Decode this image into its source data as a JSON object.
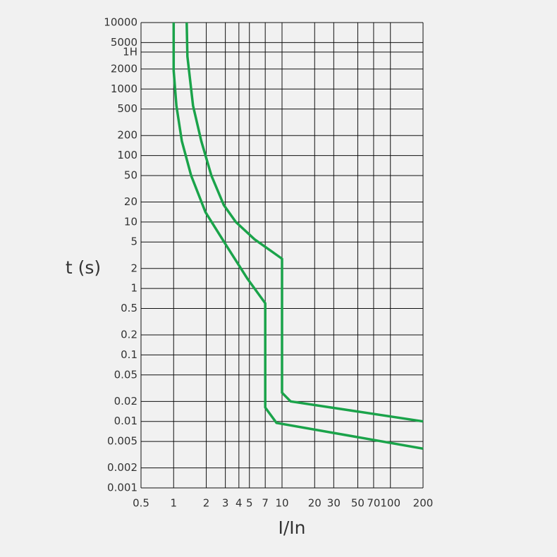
{
  "chart_data": {
    "type": "line",
    "xlabel": "I/In",
    "ylabel": "t (s)",
    "xscale": "log",
    "yscale": "log",
    "grid": true,
    "xlim": [
      0.5,
      200
    ],
    "ylim": [
      0.001,
      10000
    ],
    "xticks": [
      0.5,
      1,
      2,
      3,
      4,
      5,
      7,
      10,
      20,
      30,
      50,
      70,
      100,
      200
    ],
    "yticks": [
      10000,
      5000,
      {
        "value": 3600,
        "label": "1H"
      },
      2000,
      1000,
      500,
      200,
      100,
      50,
      20,
      10,
      5,
      2,
      1,
      0.5,
      0.2,
      0.1,
      0.05,
      0.02,
      0.01,
      0.005,
      0.002,
      0.001
    ],
    "series": [
      {
        "color": "#1aa34a",
        "x": [
          1.32,
          1.34,
          1.51,
          1.8,
          2.23,
          2.9,
          3.75,
          5.57,
          10,
          10,
          12,
          200
        ],
        "values": [
          10000,
          3100,
          560,
          165,
          50,
          18,
          10,
          5.5,
          2.8,
          0.027,
          0.02,
          0.01
        ]
      },
      {
        "color": "#1aa34a",
        "x": [
          1,
          1,
          1.06,
          1.19,
          1.45,
          1.97,
          3.1,
          4.8,
          7,
          7,
          8.9,
          200
        ],
        "values": [
          10000,
          1900,
          560,
          165,
          50,
          14,
          4.3,
          1.4,
          0.6,
          0.0162,
          0.0095,
          0.0039
        ]
      }
    ]
  }
}
